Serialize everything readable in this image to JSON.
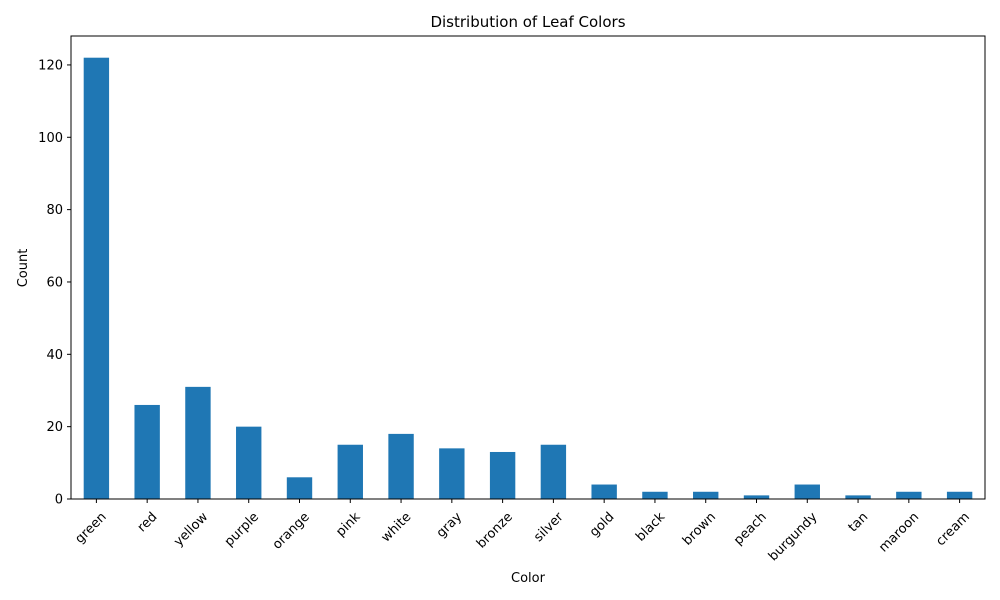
{
  "chart_data": {
    "type": "bar",
    "title": "Distribution of Leaf Colors",
    "xlabel": "Color",
    "ylabel": "Count",
    "categories": [
      "green",
      "red",
      "yellow",
      "purple",
      "orange",
      "pink",
      "white",
      "gray",
      "bronze",
      "silver",
      "gold",
      "black",
      "brown",
      "peach",
      "burgundy",
      "tan",
      "maroon",
      "cream"
    ],
    "values": [
      122,
      26,
      31,
      20,
      6,
      15,
      18,
      14,
      13,
      15,
      4,
      2,
      2,
      1,
      4,
      1,
      2,
      2
    ],
    "ylim": [
      0,
      128
    ],
    "yticks": [
      0,
      20,
      40,
      60,
      80,
      100,
      120
    ],
    "bar_color": "#1f77b4",
    "grid": false,
    "legend": "none"
  }
}
